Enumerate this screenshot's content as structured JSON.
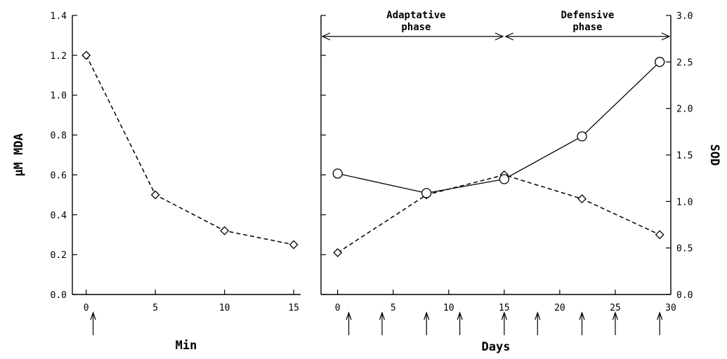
{
  "chart_data": [
    {
      "type": "line",
      "xlabel": "Min",
      "ylabel": "μM MDA",
      "xlim": [
        -1,
        15.5
      ],
      "ylim": [
        0.0,
        1.4
      ],
      "xticks": [
        0,
        5,
        10,
        15
      ],
      "yticks": [
        "0.0",
        "0.2",
        "0.4",
        "0.6",
        "0.8",
        "1.0",
        "1.2",
        "1.4"
      ],
      "arrows_at": [
        0.5
      ],
      "series": [
        {
          "marker": "diamond",
          "line": "dashed",
          "x": [
            0,
            5,
            10,
            15
          ],
          "y": [
            1.2,
            0.5,
            0.32,
            0.25
          ]
        }
      ]
    },
    {
      "type": "line",
      "xlabel": "Days",
      "ylabel_right": "SOD",
      "xlim": [
        -1.5,
        30
      ],
      "ylim_left": [
        0.0,
        1.4
      ],
      "ylim_right": [
        0.0,
        3.0
      ],
      "xticks": [
        0,
        5,
        10,
        15,
        20,
        25,
        30
      ],
      "yticks_right": [
        "0.0",
        "0.5",
        "1.0",
        "1.5",
        "2.0",
        "2.5",
        "3.0"
      ],
      "arrows_at": [
        1,
        4,
        8,
        11,
        15,
        18,
        22,
        25,
        29
      ],
      "phases": [
        {
          "label_line1": "Adaptative",
          "label_line2": "phase",
          "from": -1.5,
          "to": 15
        },
        {
          "label_line1": "Defensive",
          "label_line2": "phase",
          "from": 15,
          "to": 30
        }
      ],
      "series": [
        {
          "marker": "diamond",
          "line": "dashed",
          "axis": "left",
          "x": [
            0,
            8,
            15,
            22,
            29
          ],
          "y": [
            0.21,
            0.5,
            0.6,
            0.48,
            0.3
          ]
        },
        {
          "marker": "circle",
          "line": "solid",
          "axis": "right",
          "x": [
            0,
            8,
            15,
            22,
            29
          ],
          "y": [
            1.3,
            1.09,
            1.24,
            1.7,
            2.5
          ]
        }
      ]
    }
  ]
}
